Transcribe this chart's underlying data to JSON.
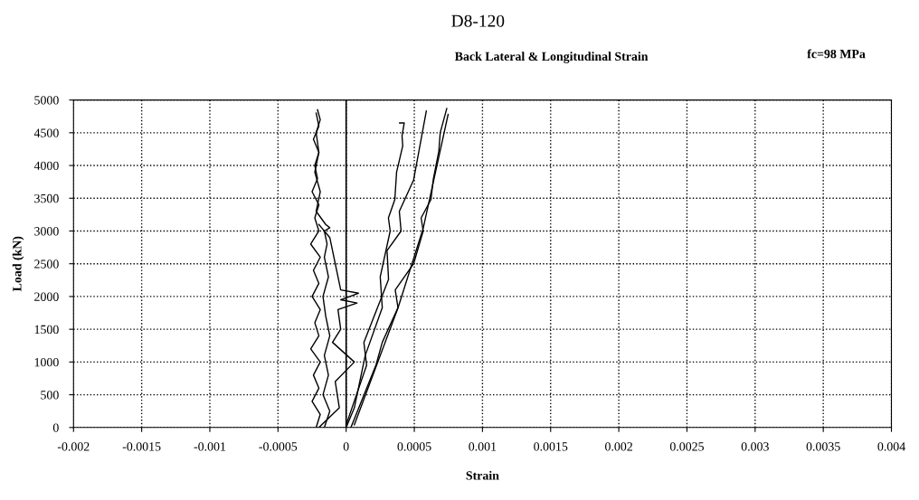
{
  "chart_data": {
    "type": "line",
    "title": "D8-120",
    "subtitle": "Back Lateral & Longitudinal Strain",
    "xlabel": "Strain",
    "ylabel": "Load (kN)",
    "annotations": [
      "fc=98 MPa"
    ],
    "xlim": [
      -0.002,
      0.004
    ],
    "xticks": [
      -0.002,
      -0.0015,
      -0.001,
      -0.0005,
      0,
      0.0005,
      0.001,
      0.0015,
      0.002,
      0.0025,
      0.003,
      0.0035,
      0.004
    ],
    "ylim": [
      0,
      5000
    ],
    "yticks": [
      0,
      500,
      1000,
      1500,
      2000,
      2500,
      3000,
      3500,
      4000,
      4500,
      5000
    ],
    "grid": true,
    "legend": false,
    "ref_lines": [
      {
        "axis": "x",
        "value": 0,
        "color": "#000000",
        "line_style": "solid"
      }
    ],
    "series": [
      {
        "color": "#000000",
        "x": [
          -0.00022,
          -0.00019,
          -0.00025,
          -0.0002,
          -0.00024,
          -0.00019,
          -0.00026,
          -0.0002,
          -0.00023,
          -0.00019,
          -0.00025,
          -0.0002,
          -0.00024,
          -0.00019,
          -0.00026,
          -0.0002,
          -0.00023,
          -0.0002,
          -0.00025,
          -0.00021,
          -0.00023,
          -0.0002,
          -0.00024,
          -0.0002,
          -0.00022
        ],
        "values": [
          0,
          200,
          400,
          600,
          800,
          1000,
          1200,
          1400,
          1600,
          1800,
          2000,
          2200,
          2400,
          2600,
          2800,
          3000,
          3200,
          3400,
          3600,
          3800,
          4000,
          4200,
          4400,
          4600,
          4800
        ]
      },
      {
        "color": "#000000",
        "x": [
          -0.00016,
          -0.00012,
          -0.00017,
          -0.00013,
          -0.00016,
          -0.00012,
          -0.00015,
          -0.00017,
          -0.00013,
          -0.00016,
          -0.00014,
          -0.00016,
          -0.00012,
          -0.00015,
          -0.00022,
          -0.00019,
          -0.00023,
          -0.0002,
          -0.00022,
          -0.00019,
          -0.00021
        ],
        "values": [
          0,
          250,
          500,
          800,
          1100,
          1400,
          1700,
          2000,
          2300,
          2600,
          2800,
          3000,
          3050,
          3100,
          3300,
          3600,
          3900,
          4200,
          4500,
          4700,
          4850
        ]
      },
      {
        "color": "#000000",
        "x": [
          -0.0002,
          -5e-05,
          -8e-05,
          6e-05,
          -0.0001,
          -4e-05,
          -6e-05,
          8e-05,
          -4e-05,
          9e-05,
          -4e-05,
          -8e-05,
          -0.00012,
          -0.00018,
          -0.0002
        ],
        "values": [
          0,
          300,
          700,
          1000,
          1300,
          1500,
          1800,
          1900,
          1950,
          2050,
          2100,
          2500,
          2900,
          3050,
          3100
        ]
      },
      {
        "color": "#000000",
        "x": [
          0,
          6e-05,
          0.000104,
          0.00014,
          0.000265,
          0.00025,
          0.000323,
          0.00031,
          0.000357,
          0.00037,
          0.000415,
          0.00041,
          0.000426,
          0.000392
        ],
        "values": [
          0,
          300,
          740,
          1100,
          1830,
          2300,
          3000,
          3200,
          3480,
          3900,
          4300,
          4450,
          4650,
          4650
        ]
      },
      {
        "color": "#000000",
        "x": [
          0,
          0.00015,
          0.00013,
          0.000311,
          0.0003,
          0.000403,
          0.00039,
          0.000495,
          0.000588
        ],
        "values": [
          40,
          950,
          1300,
          2260,
          2700,
          3000,
          3300,
          3780,
          4830
        ]
      },
      {
        "color": "#000000",
        "x": [
          3.5e-05,
          0.00022,
          0.000265,
          0.00038,
          0.00036,
          0.000495,
          0.000565,
          0.00055,
          0.000622,
          0.00064,
          0.00068,
          0.00069,
          0.000738
        ],
        "values": [
          0,
          960,
          1300,
          1830,
          2100,
          2500,
          3000,
          3200,
          3480,
          3800,
          4220,
          4500,
          4870
        ]
      },
      {
        "color": "#000000",
        "x": [
          0.000748,
          0.000565,
          0.000381,
          6e-05
        ],
        "values": [
          4780,
          3040,
          1830,
          40
        ]
      }
    ]
  }
}
